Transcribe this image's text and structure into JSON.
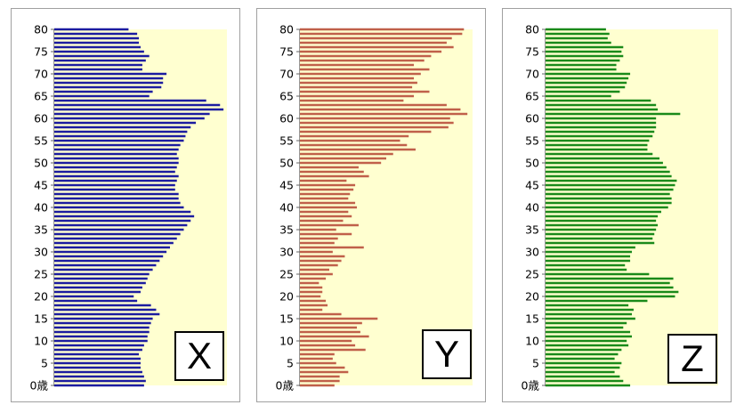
{
  "chart_data": [
    {
      "type": "bar",
      "orientation": "horizontal",
      "label": "X",
      "color": "#1c1ca0",
      "background": "#ffffd0",
      "xlim": [
        0,
        100
      ],
      "ylim": [
        0,
        80
      ],
      "ytick_labels": [
        "0歳",
        "5",
        "10",
        "15",
        "20",
        "25",
        "30",
        "35",
        "40",
        "45",
        "50",
        "55",
        "60",
        "65",
        "70",
        "75",
        "80"
      ],
      "ages": [
        0,
        1,
        2,
        3,
        4,
        5,
        6,
        7,
        8,
        9,
        10,
        11,
        12,
        13,
        14,
        15,
        16,
        17,
        18,
        19,
        20,
        21,
        22,
        23,
        24,
        25,
        26,
        27,
        28,
        29,
        30,
        31,
        32,
        33,
        34,
        35,
        36,
        37,
        38,
        39,
        40,
        41,
        42,
        43,
        44,
        45,
        46,
        47,
        48,
        49,
        50,
        51,
        52,
        53,
        54,
        55,
        56,
        57,
        58,
        59,
        60,
        61,
        62,
        63,
        64,
        65,
        66,
        67,
        68,
        69,
        70,
        71,
        72,
        73,
        74,
        75,
        76,
        77,
        78,
        79,
        80
      ],
      "values": [
        52,
        53,
        52,
        51,
        50,
        50,
        50,
        49,
        51,
        52,
        54,
        54,
        55,
        55,
        56,
        57,
        61,
        59,
        56,
        48,
        46,
        50,
        51,
        53,
        54,
        55,
        57,
        59,
        61,
        63,
        65,
        67,
        69,
        71,
        73,
        75,
        77,
        79,
        81,
        79,
        75,
        73,
        72,
        72,
        70,
        70,
        71,
        72,
        70,
        71,
        72,
        72,
        71,
        72,
        73,
        75,
        76,
        77,
        79,
        82,
        87,
        90,
        98,
        96,
        88,
        55,
        57,
        62,
        63,
        63,
        65,
        51,
        51,
        53,
        55,
        52,
        50,
        49,
        49,
        48,
        43
      ]
    },
    {
      "type": "bar",
      "orientation": "horizontal",
      "label": "Y",
      "color": "#c0604a",
      "background": "#ffffd0",
      "xlim": [
        0,
        100
      ],
      "ylim": [
        0,
        80
      ],
      "ytick_labels": [
        "0歳",
        "5",
        "10",
        "15",
        "20",
        "25",
        "30",
        "35",
        "40",
        "45",
        "50",
        "55",
        "60",
        "65",
        "70",
        "75",
        "80"
      ],
      "ages": [
        0,
        1,
        2,
        3,
        4,
        5,
        6,
        7,
        8,
        9,
        10,
        11,
        12,
        13,
        14,
        15,
        16,
        17,
        18,
        19,
        20,
        21,
        22,
        23,
        24,
        25,
        26,
        27,
        28,
        29,
        30,
        31,
        32,
        33,
        34,
        35,
        36,
        37,
        38,
        39,
        40,
        41,
        42,
        43,
        44,
        45,
        46,
        47,
        48,
        49,
        50,
        51,
        52,
        53,
        54,
        55,
        56,
        57,
        58,
        59,
        60,
        61,
        62,
        63,
        64,
        65,
        66,
        67,
        68,
        69,
        70,
        71,
        72,
        73,
        74,
        75,
        76,
        77,
        78,
        79,
        80
      ],
      "values": [
        20,
        23,
        23,
        28,
        26,
        21,
        19,
        20,
        38,
        32,
        30,
        40,
        35,
        33,
        36,
        45,
        24,
        13,
        16,
        15,
        12,
        13,
        13,
        11,
        15,
        19,
        17,
        22,
        24,
        26,
        19,
        37,
        20,
        22,
        30,
        21,
        34,
        25,
        30,
        28,
        33,
        32,
        28,
        29,
        31,
        32,
        27,
        40,
        37,
        34,
        47,
        50,
        54,
        67,
        62,
        58,
        63,
        76,
        86,
        89,
        87,
        97,
        93,
        85,
        60,
        66,
        75,
        65,
        68,
        66,
        70,
        75,
        66,
        72,
        76,
        82,
        89,
        85,
        88,
        94,
        95
      ]
    },
    {
      "type": "bar",
      "orientation": "horizontal",
      "label": "Z",
      "color": "#1a8a1a",
      "background": "#ffffd0",
      "xlim": [
        0,
        100
      ],
      "ylim": [
        0,
        80
      ],
      "ytick_labels": [
        "0歳",
        "5",
        "10",
        "15",
        "20",
        "25",
        "30",
        "35",
        "40",
        "45",
        "50",
        "55",
        "60",
        "65",
        "70",
        "75",
        "80"
      ],
      "ages": [
        0,
        1,
        2,
        3,
        4,
        5,
        6,
        7,
        8,
        9,
        10,
        11,
        12,
        13,
        14,
        15,
        16,
        17,
        18,
        19,
        20,
        21,
        22,
        23,
        24,
        25,
        26,
        27,
        28,
        29,
        30,
        31,
        32,
        33,
        34,
        35,
        36,
        37,
        38,
        39,
        40,
        41,
        42,
        43,
        44,
        45,
        46,
        47,
        48,
        49,
        50,
        51,
        52,
        53,
        54,
        55,
        56,
        57,
        58,
        59,
        60,
        61,
        62,
        63,
        64,
        65,
        66,
        67,
        68,
        69,
        70,
        71,
        72,
        73,
        74,
        75,
        76,
        77,
        78,
        79,
        80
      ],
      "values": [
        49,
        45,
        43,
        40,
        43,
        44,
        40,
        42,
        44,
        48,
        47,
        50,
        49,
        45,
        47,
        52,
        50,
        51,
        48,
        59,
        75,
        77,
        74,
        72,
        74,
        60,
        47,
        46,
        49,
        49,
        50,
        52,
        63,
        62,
        63,
        64,
        65,
        64,
        65,
        67,
        71,
        73,
        73,
        72,
        74,
        75,
        76,
        73,
        72,
        70,
        68,
        66,
        62,
        59,
        59,
        60,
        62,
        63,
        64,
        64,
        64,
        78,
        65,
        64,
        61,
        38,
        43,
        46,
        47,
        48,
        49,
        41,
        41,
        43,
        45,
        44,
        45,
        38,
        36,
        37,
        35
      ]
    }
  ]
}
